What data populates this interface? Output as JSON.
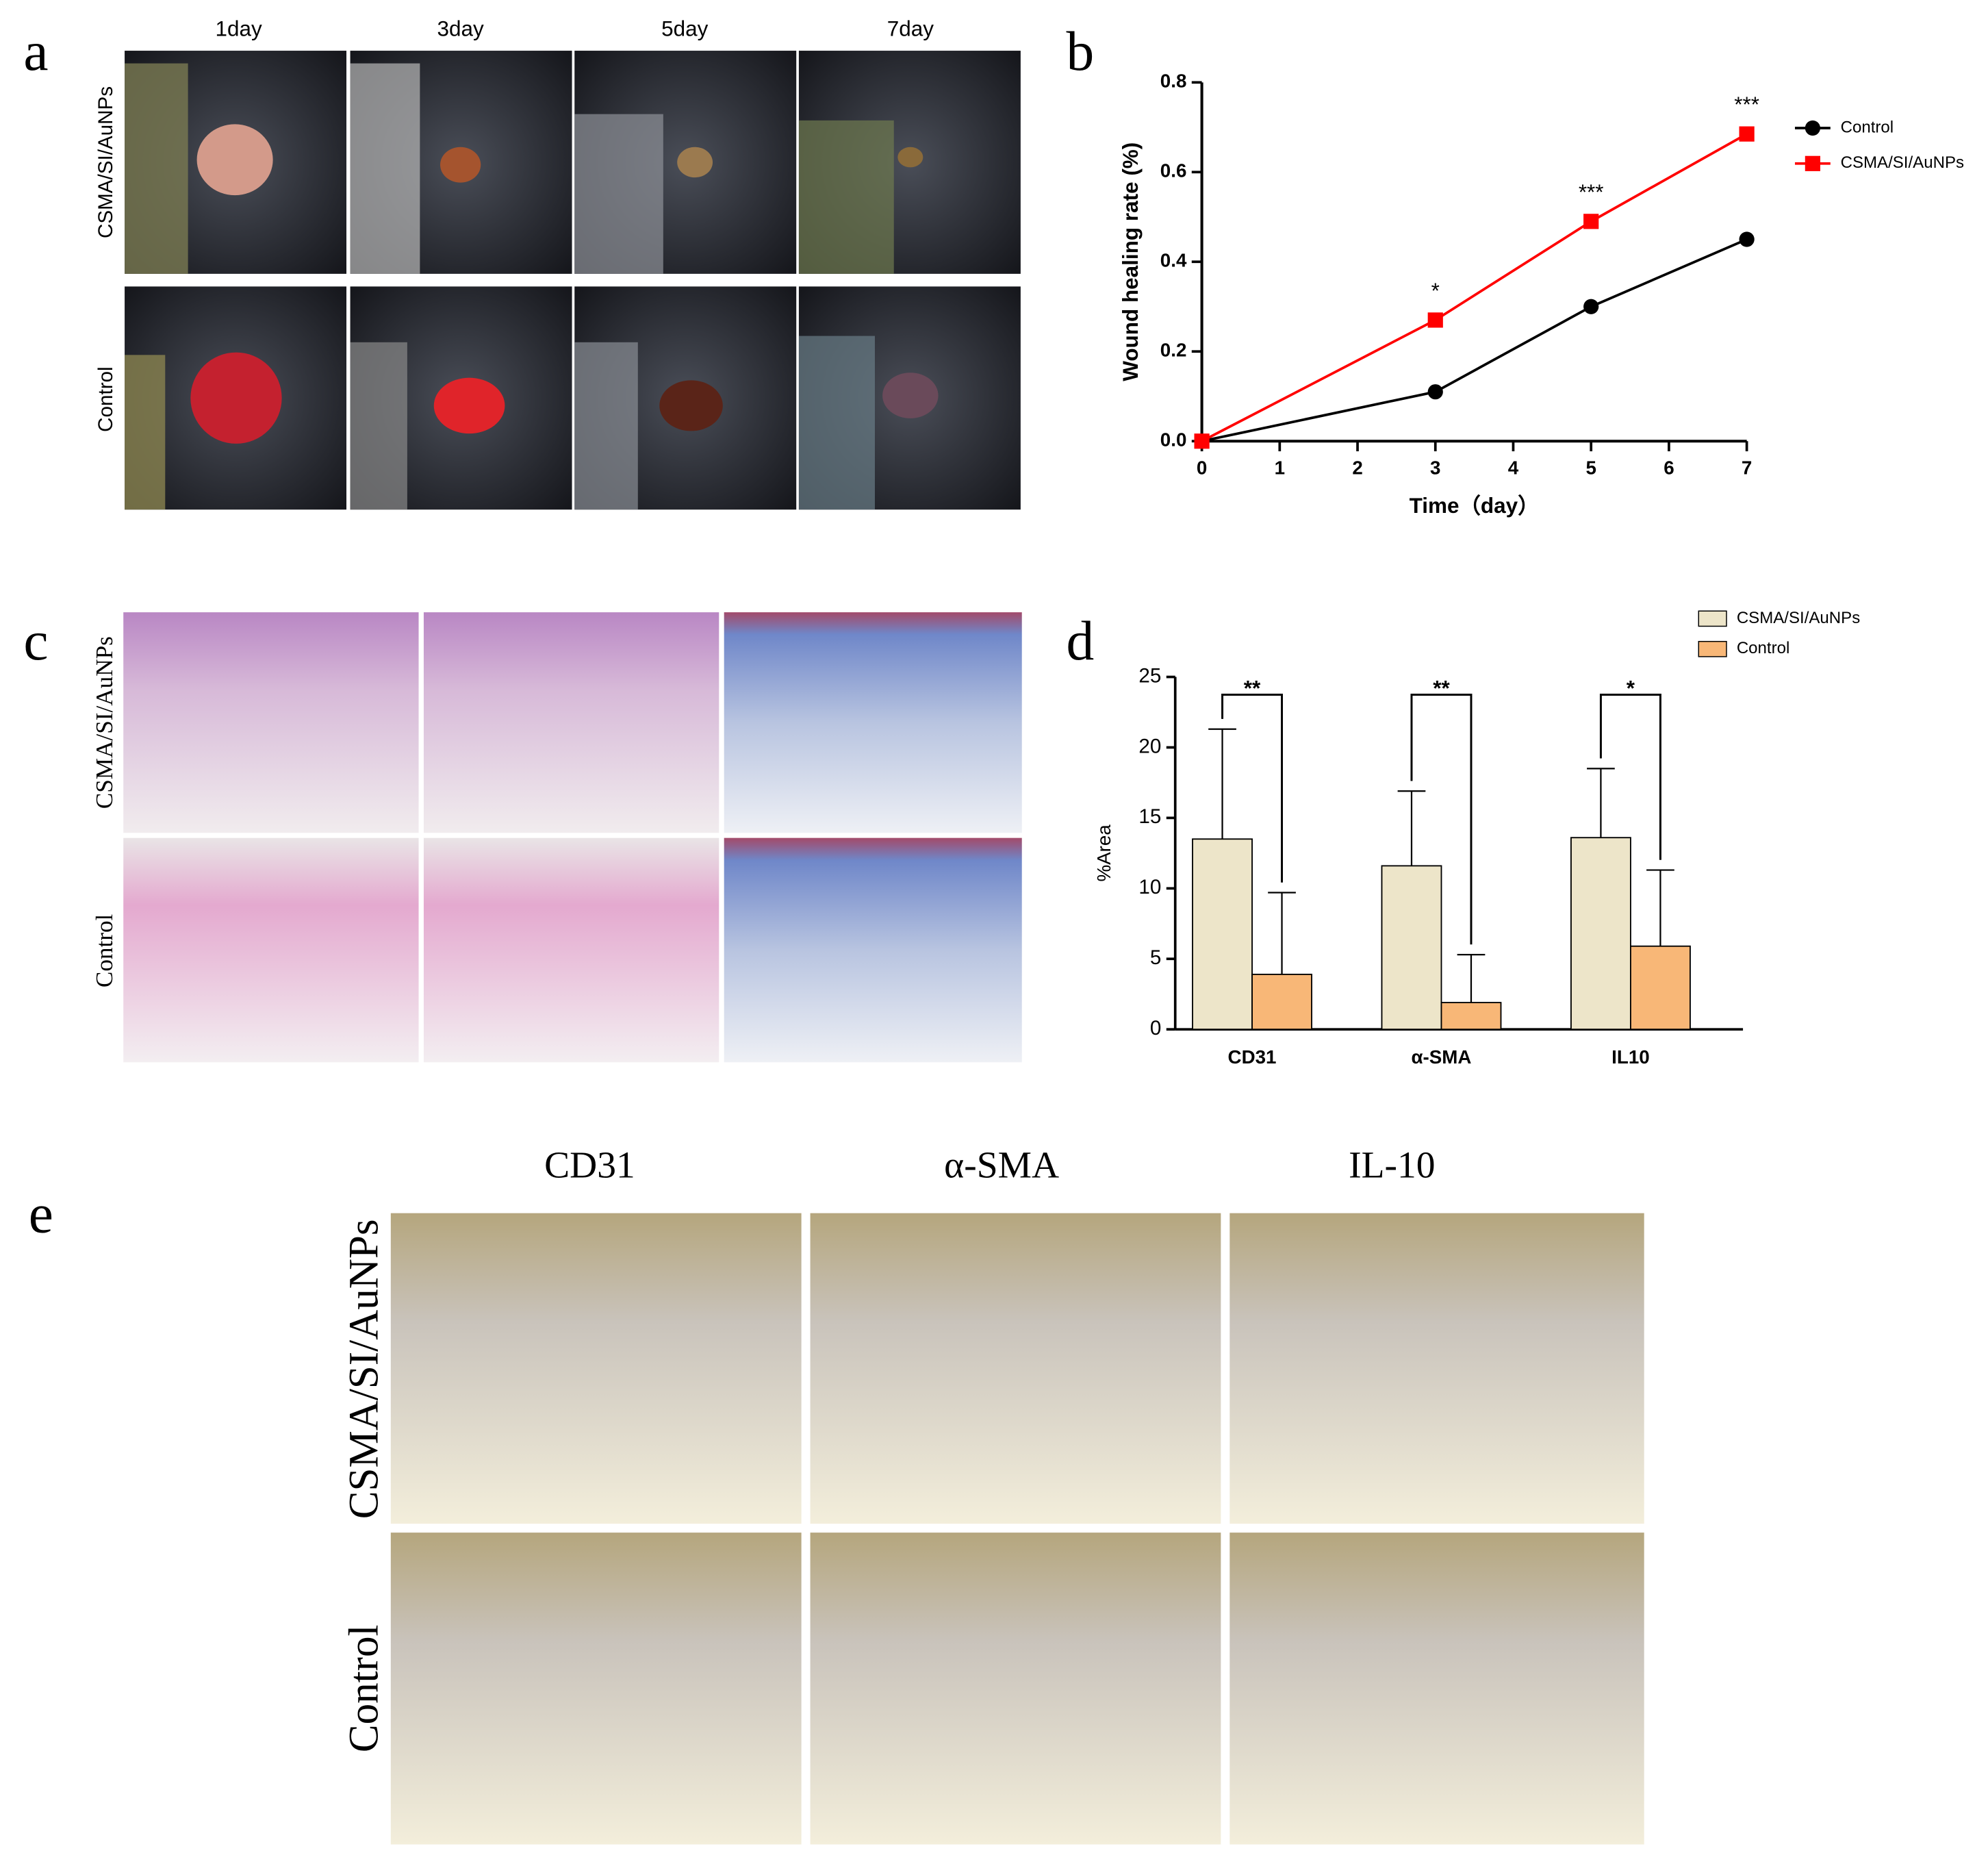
{
  "panel_labels": [
    "a",
    "b",
    "c",
    "d",
    "e"
  ],
  "photo_panels": {
    "a": {
      "columns": [
        "1day",
        "3day",
        "5day",
        "7day"
      ],
      "rows": [
        "CSMA/SI/AuNPs",
        "Control"
      ]
    },
    "c": {
      "rows": [
        "CSMA/SI/AuNPs",
        "Control"
      ]
    },
    "e": {
      "columns": [
        "CD31",
        "α-SMA",
        "IL-10"
      ],
      "rows": [
        "CSMA/SI/AuNPs",
        "Control"
      ]
    }
  },
  "chart_data": [
    {
      "type": "line",
      "xlabel": "Time（day）",
      "ylabel": "Wound healing rate (%)",
      "x": [
        0,
        3,
        5,
        7
      ],
      "xlim": [
        0,
        7
      ],
      "xticks": [
        0,
        1,
        2,
        3,
        4,
        5,
        6,
        7
      ],
      "ylim": [
        0,
        0.8
      ],
      "yticks": [
        {
          "value": 0,
          "label": "0.0"
        },
        0.2,
        0.4,
        0.6,
        0.8
      ],
      "legend": "right",
      "series": [
        {
          "name": "Control",
          "color": "#000000",
          "marker": "circle",
          "values": [
            0,
            0.11,
            0.3,
            0.45
          ]
        },
        {
          "name": "CSMA/SI/AuNPs",
          "color": "#ff0000",
          "marker": "square",
          "values": [
            0,
            0.27,
            0.49,
            0.685
          ]
        }
      ],
      "annotations": [
        {
          "x": 3,
          "text": "*"
        },
        {
          "x": 5,
          "text": "***"
        },
        {
          "x": 7,
          "text": "***"
        }
      ]
    },
    {
      "type": "bar",
      "ylabel": "%Area",
      "categories": [
        "CD31",
        "α-SMA",
        "IL10"
      ],
      "ylim": [
        0,
        25
      ],
      "yticks": [
        0,
        5,
        10,
        15,
        20,
        25
      ],
      "legend": "top-right",
      "series": [
        {
          "name": "CSMA/SI/AuNPs",
          "color": "#ede5c9",
          "values": [
            13.5,
            11.6,
            13.6
          ],
          "errors": [
            7.8,
            5.3,
            4.9
          ]
        },
        {
          "name": "Control",
          "color": "#f8b777",
          "values": [
            3.9,
            1.9,
            5.9
          ],
          "errors": [
            5.8,
            3.4,
            5.4
          ]
        }
      ],
      "significance": [
        "**",
        "**",
        "*"
      ]
    }
  ]
}
